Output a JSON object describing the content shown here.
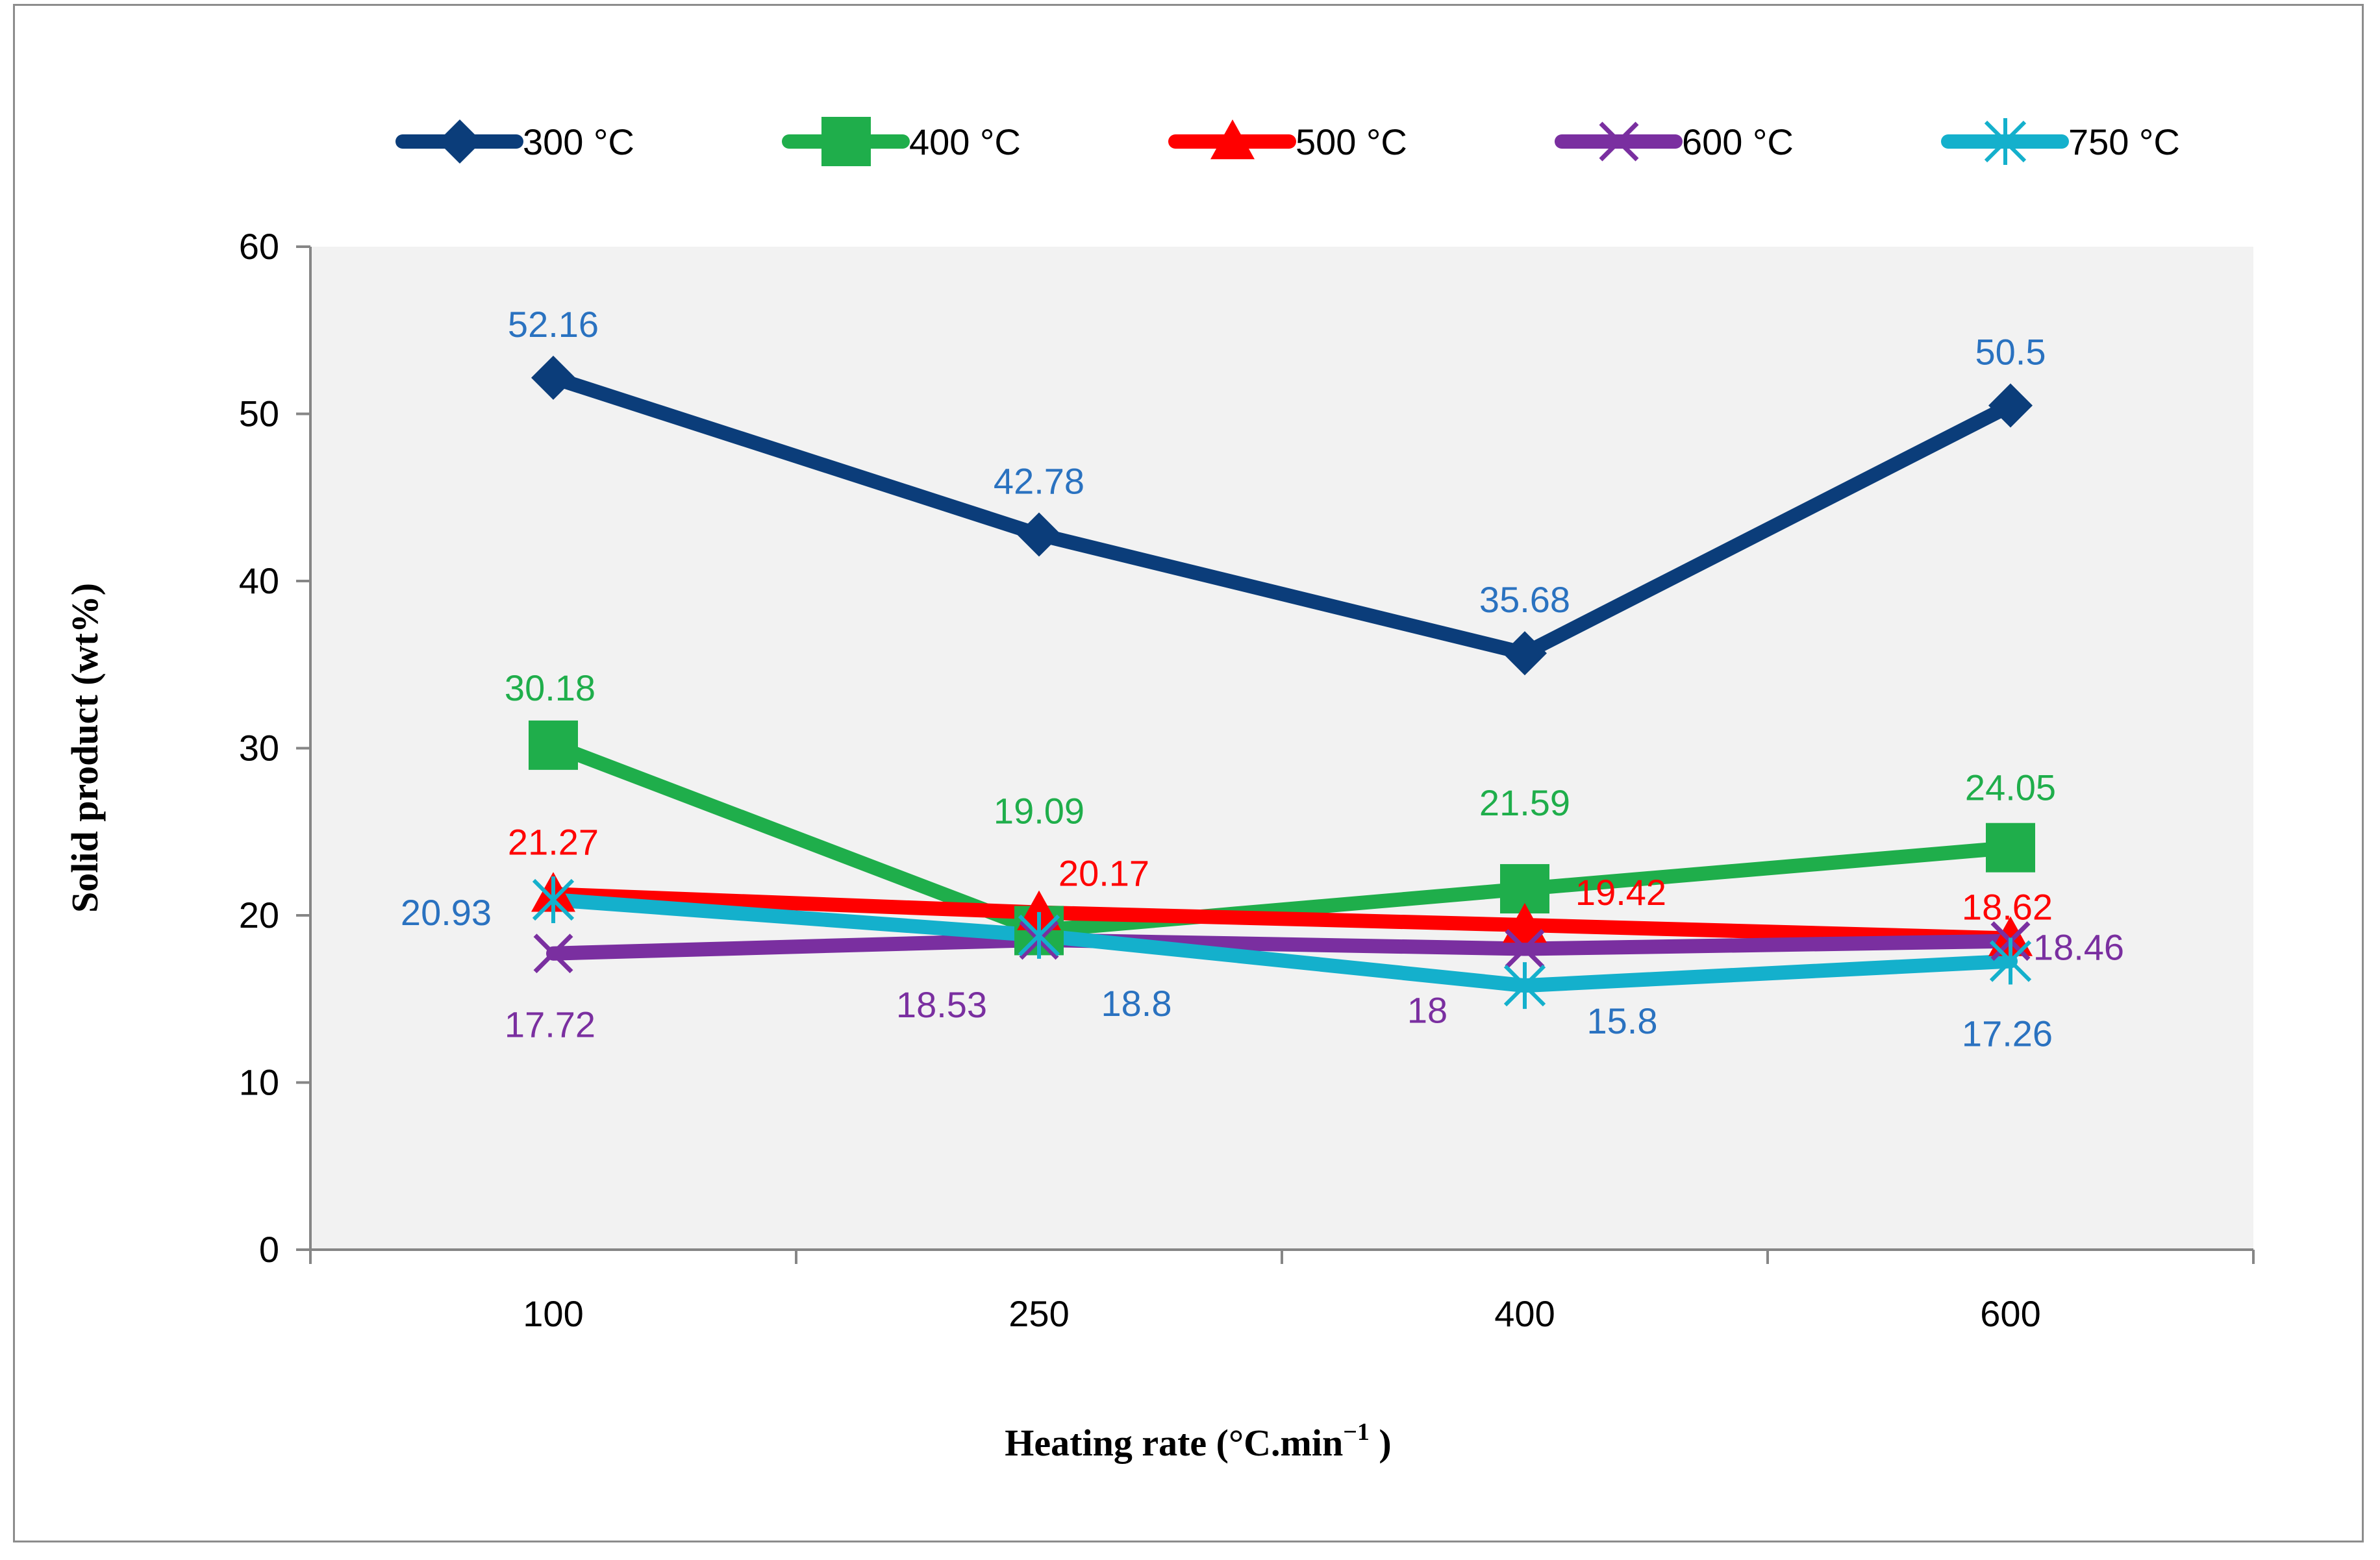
{
  "chart_data": {
    "type": "line",
    "title": "",
    "xlabel": "Heating rate (°C.min",
    "xlabel_sup": "−1",
    "xlabel_end": " )",
    "ylabel": "Solid  product (wt%)",
    "categories": [
      "100",
      "250",
      "400",
      "600"
    ],
    "ylim": [
      0,
      60
    ],
    "yticks": [
      "0",
      "10",
      "20",
      "30",
      "40",
      "50",
      "60"
    ],
    "grid": false,
    "legend_position": "top",
    "series": [
      {
        "name": "300 °C",
        "color": "#0b3d7a",
        "label_color": "#2a72c0",
        "marker": "diamond",
        "values": [
          52.16,
          42.78,
          35.68,
          50.5
        ],
        "labels": [
          "52.16",
          "42.78",
          "35.68",
          "50.5"
        ]
      },
      {
        "name": "400 °C",
        "color": "#1fae4b",
        "label_color": "#1fae4b",
        "marker": "square",
        "values": [
          30.18,
          19.09,
          21.59,
          24.05
        ],
        "labels": [
          "30.18",
          "19.09",
          "21.59",
          "24.05"
        ]
      },
      {
        "name": "500 °C",
        "color": "#ff0000",
        "label_color": "#ff0000",
        "marker": "triangle",
        "values": [
          21.27,
          20.17,
          19.42,
          18.62
        ],
        "labels": [
          "21.27",
          "20.17",
          "19.42",
          "18.62"
        ]
      },
      {
        "name": "600 °C",
        "color": "#7a2fa0",
        "label_color": "#7a2fa0",
        "marker": "x",
        "values": [
          17.72,
          18.53,
          18,
          18.46
        ],
        "labels": [
          "17.72",
          "18.53",
          "18",
          "18.46"
        ]
      },
      {
        "name": "750  °C",
        "color": "#14b0cc",
        "label_color": "#2a72c0",
        "marker": "star",
        "values": [
          20.93,
          18.8,
          15.8,
          17.26
        ],
        "labels": [
          "20.93",
          "18.8",
          "15.8",
          "17.26"
        ]
      }
    ]
  }
}
